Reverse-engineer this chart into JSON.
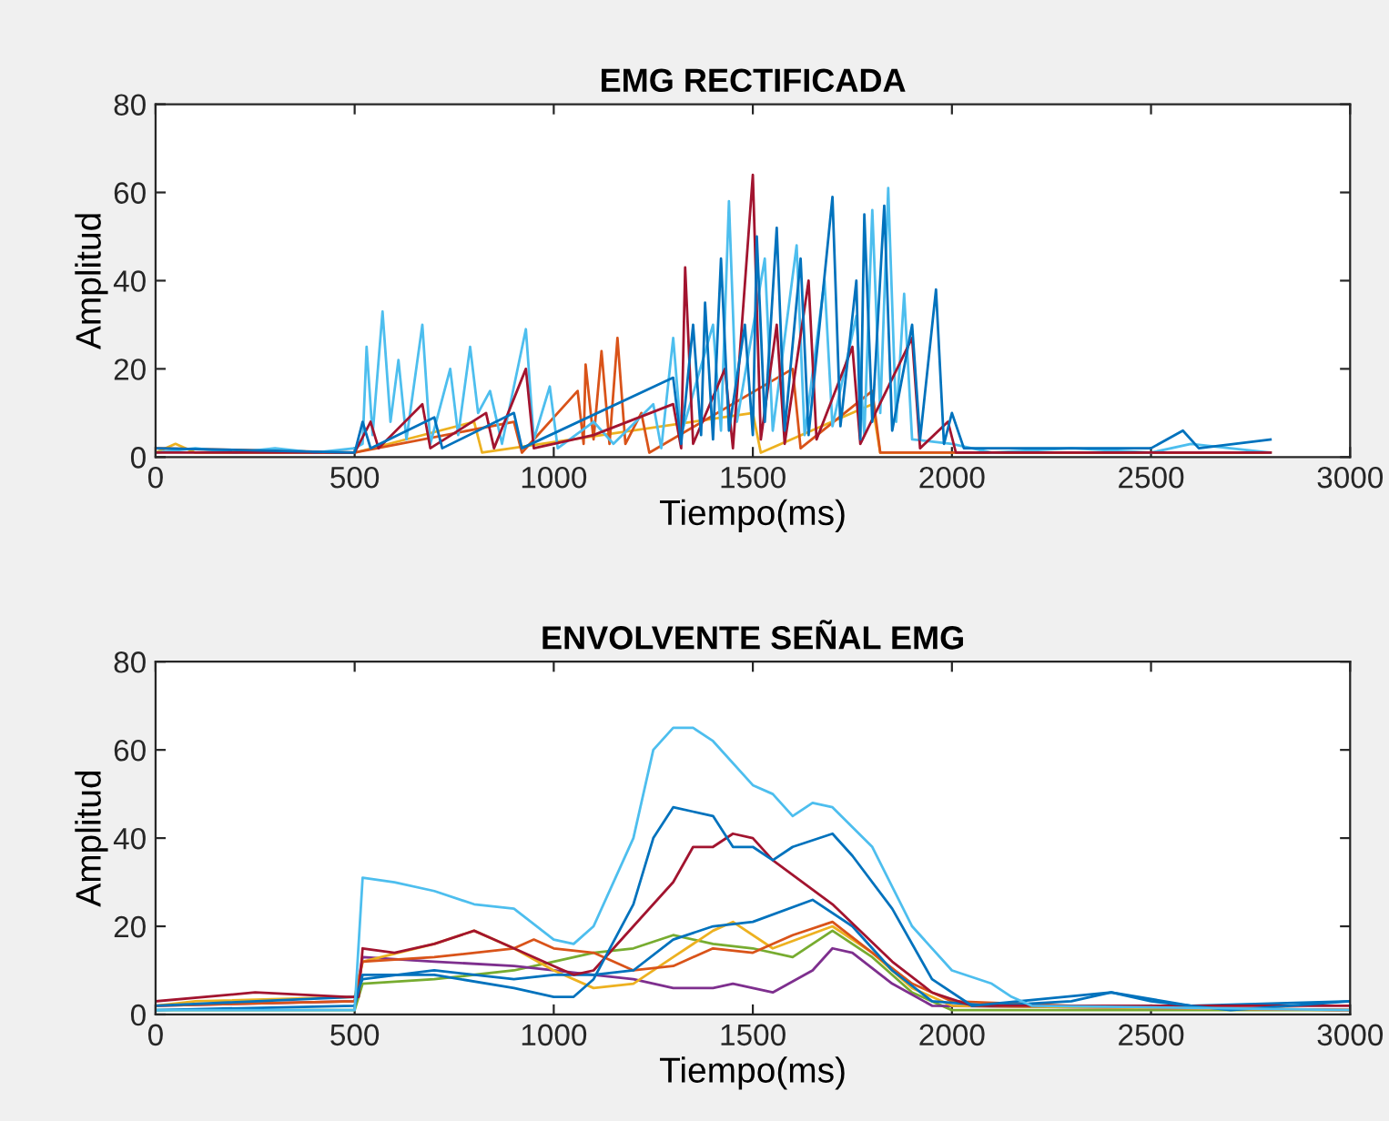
{
  "chart_data": [
    {
      "type": "line",
      "title": "EMG RECTIFICADA",
      "xlabel": "Tiempo(ms)",
      "ylabel": "Amplitud",
      "xlim": [
        0,
        3000
      ],
      "xticks": [
        0,
        500,
        1000,
        1500,
        2000,
        2500,
        3000
      ],
      "ylim": [
        0,
        80
      ],
      "yticks": [
        0,
        20,
        40,
        60,
        80
      ],
      "grid": false,
      "series": [
        {
          "color": "#edb120",
          "x": [
            0,
            50,
            100,
            500,
            800,
            820,
            1500,
            1520,
            1800,
            1820,
            2800
          ],
          "values": [
            1,
            3,
            1,
            1,
            8,
            1,
            10,
            1,
            12,
            1,
            1
          ]
        },
        {
          "color": "#d95319",
          "x": [
            0,
            500,
            900,
            920,
            1060,
            1075,
            1080,
            1100,
            1120,
            1140,
            1160,
            1180,
            1220,
            1240,
            1600,
            1620,
            1800,
            1820,
            2800
          ],
          "values": [
            2,
            1,
            8,
            1,
            15,
            3,
            21,
            4,
            24,
            3,
            27,
            3,
            10,
            1,
            20,
            2,
            15,
            1,
            1
          ]
        },
        {
          "color": "#4dbeee",
          "x": [
            0,
            100,
            200,
            300,
            400,
            500,
            520,
            530,
            545,
            570,
            590,
            610,
            630,
            670,
            690,
            740,
            760,
            790,
            810,
            840,
            870,
            930,
            950,
            990,
            1010,
            1100,
            1150,
            1250,
            1270,
            1300,
            1320,
            1400,
            1420,
            1440,
            1460,
            1530,
            1550,
            1610,
            1630,
            1680,
            1700,
            1760,
            1780,
            1800,
            1820,
            1840,
            1860,
            1880,
            1900,
            2000,
            2100,
            2300,
            2500,
            2600,
            2800
          ],
          "values": [
            1,
            2,
            1,
            2,
            1,
            2,
            3,
            25,
            5,
            33,
            8,
            22,
            4,
            30,
            3,
            20,
            5,
            25,
            10,
            15,
            3,
            29,
            4,
            16,
            2,
            8,
            3,
            12,
            2,
            27,
            5,
            30,
            6,
            58,
            8,
            45,
            6,
            48,
            5,
            40,
            7,
            32,
            5,
            56,
            10,
            61,
            8,
            37,
            4,
            3,
            1,
            2,
            1,
            3,
            1
          ]
        },
        {
          "color": "#a2142f",
          "x": [
            0,
            500,
            540,
            560,
            670,
            690,
            830,
            850,
            930,
            950,
            1100,
            1300,
            1320,
            1330,
            1350,
            1430,
            1450,
            1500,
            1520,
            1560,
            1580,
            1640,
            1660,
            1750,
            1770,
            1900,
            1920,
            1990,
            2010,
            2800
          ],
          "values": [
            1,
            1,
            8,
            2,
            12,
            2,
            10,
            2,
            20,
            2,
            5,
            12,
            2,
            43,
            3,
            20,
            2,
            64,
            4,
            30,
            3,
            40,
            4,
            25,
            3,
            27,
            2,
            8,
            1,
            1
          ]
        },
        {
          "color": "#0072bd",
          "x": [
            0,
            500,
            520,
            540,
            700,
            720,
            900,
            920,
            1300,
            1320,
            1350,
            1370,
            1380,
            1400,
            1420,
            1440,
            1480,
            1500,
            1510,
            1530,
            1560,
            1580,
            1620,
            1640,
            1700,
            1720,
            1760,
            1770,
            1780,
            1800,
            1830,
            1850,
            1900,
            1920,
            1960,
            1980,
            2000,
            2030,
            2200,
            2500,
            2580,
            2620,
            2800
          ],
          "values": [
            2,
            1,
            8,
            2,
            9,
            2,
            10,
            2,
            18,
            3,
            30,
            5,
            35,
            4,
            45,
            6,
            30,
            5,
            50,
            8,
            52,
            6,
            45,
            5,
            59,
            7,
            40,
            4,
            55,
            8,
            57,
            6,
            30,
            4,
            38,
            3,
            10,
            2,
            2,
            2,
            6,
            2,
            4
          ]
        }
      ]
    },
    {
      "type": "line",
      "title": "ENVOLVENTE SEÑAL EMG",
      "xlabel": "Tiempo(ms)",
      "ylabel": "Amplitud",
      "xlim": [
        0,
        3000
      ],
      "xticks": [
        0,
        500,
        1000,
        1500,
        2000,
        2500,
        3000
      ],
      "ylim": [
        0,
        80
      ],
      "yticks": [
        0,
        20,
        40,
        60,
        80
      ],
      "grid": false,
      "series": [
        {
          "color": "#77ac30",
          "x": [
            0,
            500,
            520,
            700,
            900,
            1000,
            1100,
            1200,
            1300,
            1400,
            1500,
            1600,
            1700,
            1800,
            1900,
            2000,
            3000
          ],
          "values": [
            1,
            1,
            7,
            8,
            10,
            12,
            14,
            15,
            18,
            16,
            15,
            13,
            19,
            13,
            5,
            1,
            1
          ]
        },
        {
          "color": "#7e2f8e",
          "x": [
            0,
            500,
            520,
            700,
            900,
            1000,
            1100,
            1200,
            1300,
            1400,
            1450,
            1550,
            1650,
            1700,
            1750,
            1850,
            1950,
            3000
          ],
          "values": [
            2,
            3,
            13,
            12,
            11,
            10,
            9,
            8,
            6,
            6,
            7,
            5,
            10,
            15,
            14,
            7,
            2,
            1
          ]
        },
        {
          "color": "#edb120",
          "x": [
            0,
            100,
            500,
            520,
            700,
            800,
            900,
            1000,
            1100,
            1200,
            1300,
            1400,
            1450,
            1550,
            1700,
            1800,
            1900,
            2000,
            3000
          ],
          "values": [
            2,
            3,
            4,
            12,
            16,
            19,
            15,
            10,
            6,
            7,
            13,
            19,
            21,
            15,
            20,
            14,
            6,
            2,
            1
          ]
        },
        {
          "color": "#d95319",
          "x": [
            0,
            500,
            520,
            700,
            900,
            950,
            1000,
            1100,
            1200,
            1300,
            1400,
            1500,
            1600,
            1700,
            1800,
            1900,
            2000,
            2300,
            3000
          ],
          "values": [
            2,
            3,
            12,
            13,
            15,
            17,
            15,
            14,
            10,
            11,
            15,
            14,
            18,
            21,
            14,
            7,
            3,
            2,
            1
          ]
        },
        {
          "color": "#0072bd",
          "x": [
            0,
            500,
            520,
            700,
            900,
            1000,
            1100,
            1200,
            1300,
            1400,
            1500,
            1650,
            1750,
            1850,
            1950,
            2100,
            2300,
            2400,
            2600,
            3000
          ],
          "values": [
            2,
            4,
            8,
            10,
            8,
            9,
            9,
            10,
            17,
            20,
            21,
            26,
            20,
            10,
            3,
            2,
            3,
            5,
            2,
            3
          ]
        },
        {
          "color": "#a2142f",
          "x": [
            0,
            250,
            480,
            510,
            520,
            600,
            700,
            800,
            850,
            900,
            1000,
            1050,
            1100,
            1200,
            1300,
            1350,
            1400,
            1450,
            1500,
            1550,
            1700,
            1850,
            1950,
            2050,
            3000
          ],
          "values": [
            3,
            5,
            4,
            4,
            15,
            14,
            16,
            19,
            17,
            15,
            11,
            9,
            10,
            20,
            30,
            38,
            38,
            41,
            40,
            35,
            25,
            12,
            5,
            2,
            2
          ]
        },
        {
          "color": "#0072bd",
          "x": [
            0,
            500,
            520,
            700,
            900,
            1000,
            1050,
            1100,
            1200,
            1250,
            1300,
            1350,
            1400,
            1450,
            1500,
            1550,
            1600,
            1700,
            1750,
            1850,
            1950,
            2050,
            2400,
            2500,
            2700,
            3000
          ],
          "values": [
            1,
            2,
            9,
            9,
            6,
            4,
            4,
            8,
            25,
            40,
            47,
            46,
            45,
            38,
            38,
            35,
            38,
            41,
            36,
            24,
            8,
            2,
            5,
            3,
            1,
            3
          ]
        },
        {
          "color": "#4dbeee",
          "x": [
            0,
            500,
            520,
            600,
            700,
            800,
            900,
            1000,
            1050,
            1100,
            1200,
            1250,
            1300,
            1350,
            1400,
            1500,
            1550,
            1600,
            1650,
            1700,
            1800,
            1900,
            2000,
            2100,
            2150,
            2200,
            3000
          ],
          "values": [
            1,
            1,
            31,
            30,
            28,
            25,
            24,
            17,
            16,
            20,
            40,
            60,
            65,
            65,
            62,
            52,
            50,
            45,
            48,
            47,
            38,
            20,
            10,
            7,
            4,
            2,
            1
          ]
        }
      ]
    }
  ]
}
